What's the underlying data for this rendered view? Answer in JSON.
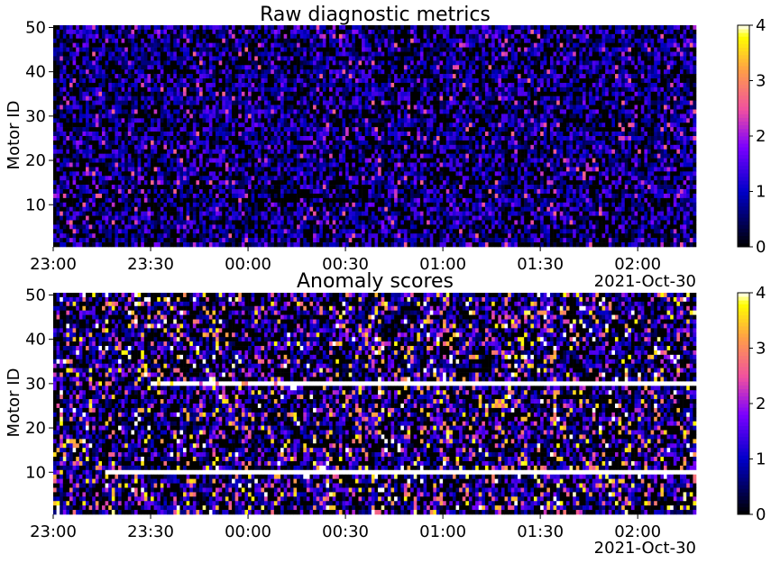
{
  "chart_data": [
    {
      "type": "heatmap",
      "title": "Raw diagnostic metrics",
      "ylabel": "Motor ID",
      "xlabel": "",
      "x_ticks": [
        "23:00",
        "23:30",
        "00:00",
        "00:30",
        "01:00",
        "01:30",
        "02:00"
      ],
      "x_offset_label": "2021-Oct-30",
      "y_ticks": [
        10,
        20,
        30,
        40,
        50
      ],
      "ylim": [
        1,
        50
      ],
      "xlim": [
        "2021-10-29 23:00",
        "2021-10-30 02:18"
      ],
      "colormap": "gnuplot2",
      "colorbar": {
        "min": 0,
        "max": 4,
        "ticks": [
          0,
          1,
          2,
          3,
          4
        ]
      },
      "rows": 50,
      "columns": 198,
      "value_distribution": "dense random noise, mostly 0-1.5 with sparse peaks up to ~2.5",
      "anomalies": []
    },
    {
      "type": "heatmap",
      "title": "Anomaly scores",
      "ylabel": "Motor ID",
      "xlabel": "",
      "x_ticks": [
        "23:00",
        "23:30",
        "00:00",
        "00:30",
        "01:00",
        "01:30",
        "02:00"
      ],
      "x_offset_label": "2021-Oct-30",
      "y_ticks": [
        10,
        20,
        30,
        40,
        50
      ],
      "ylim": [
        1,
        50
      ],
      "xlim": [
        "2021-10-29 23:00",
        "2021-10-30 02:18"
      ],
      "colormap": "gnuplot2",
      "colorbar": {
        "min": 0,
        "max": 4,
        "ticks": [
          0,
          1,
          2,
          3,
          4
        ]
      },
      "rows": 50,
      "columns": 198,
      "value_distribution": "random noise with frequent peaks up to 4 (saturated white above 4)",
      "anomalies": [
        {
          "motor_id": 10,
          "start": "23:16",
          "end": "02:18",
          "level": "saturated (>4)"
        },
        {
          "motor_id": 30,
          "start": "23:30",
          "end": "02:18",
          "level": "saturated (>4), intermittent early"
        }
      ]
    }
  ]
}
